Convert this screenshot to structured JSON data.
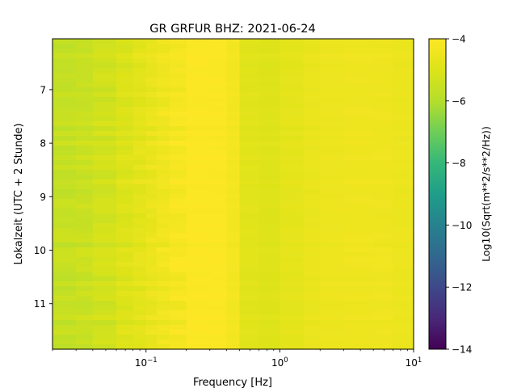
{
  "chart_data": {
    "type": "heatmap",
    "title": "GR GRFUR  BHZ: 2021-06-24",
    "xlabel": "Frequency [Hz]",
    "ylabel": "Lokalzeit (UTC + 2 Stunde)",
    "x_scale": "log",
    "xlim": [
      0.02,
      10
    ],
    "ylim": [
      11.85,
      6.05
    ],
    "y_inverted": true,
    "x_ticks": [
      {
        "value": 0.1,
        "base": "10",
        "exp": "−1"
      },
      {
        "value": 1,
        "base": "10",
        "exp": "0"
      },
      {
        "value": 10,
        "base": "10",
        "exp": "1"
      }
    ],
    "y_ticks": [
      {
        "value": 7,
        "label": "7"
      },
      {
        "value": 8,
        "label": "8"
      },
      {
        "value": 9,
        "label": "9"
      },
      {
        "value": 10,
        "label": "10"
      },
      {
        "value": 11,
        "label": "11"
      }
    ],
    "colormap": "viridis",
    "colorbar": {
      "label": "Log10(Sqrt(m**2/s**2/Hz))",
      "range": [
        -14,
        -4
      ],
      "ticks": [
        {
          "value": -4,
          "label": "−4"
        },
        {
          "value": -6,
          "label": "−6"
        },
        {
          "value": -8,
          "label": "−8"
        },
        {
          "value": -10,
          "label": "−10"
        },
        {
          "value": -12,
          "label": "−12"
        },
        {
          "value": -14,
          "label": "−14"
        }
      ]
    },
    "frequency_bins": [
      0.02,
      0.03,
      0.04,
      0.06,
      0.08,
      0.1,
      0.12,
      0.15,
      0.2,
      0.3,
      0.4,
      0.5,
      0.7,
      1,
      1.5,
      2,
      3,
      5,
      7,
      10
    ],
    "level_profile": [
      -5.6,
      -5.5,
      -5.3,
      -5.0,
      -4.8,
      -4.6,
      -4.4,
      -4.25,
      -4.05,
      -4.05,
      -4.3,
      -4.85,
      -4.95,
      -4.75,
      -4.6,
      -4.5,
      -4.45,
      -4.45,
      -4.55
    ]
  }
}
